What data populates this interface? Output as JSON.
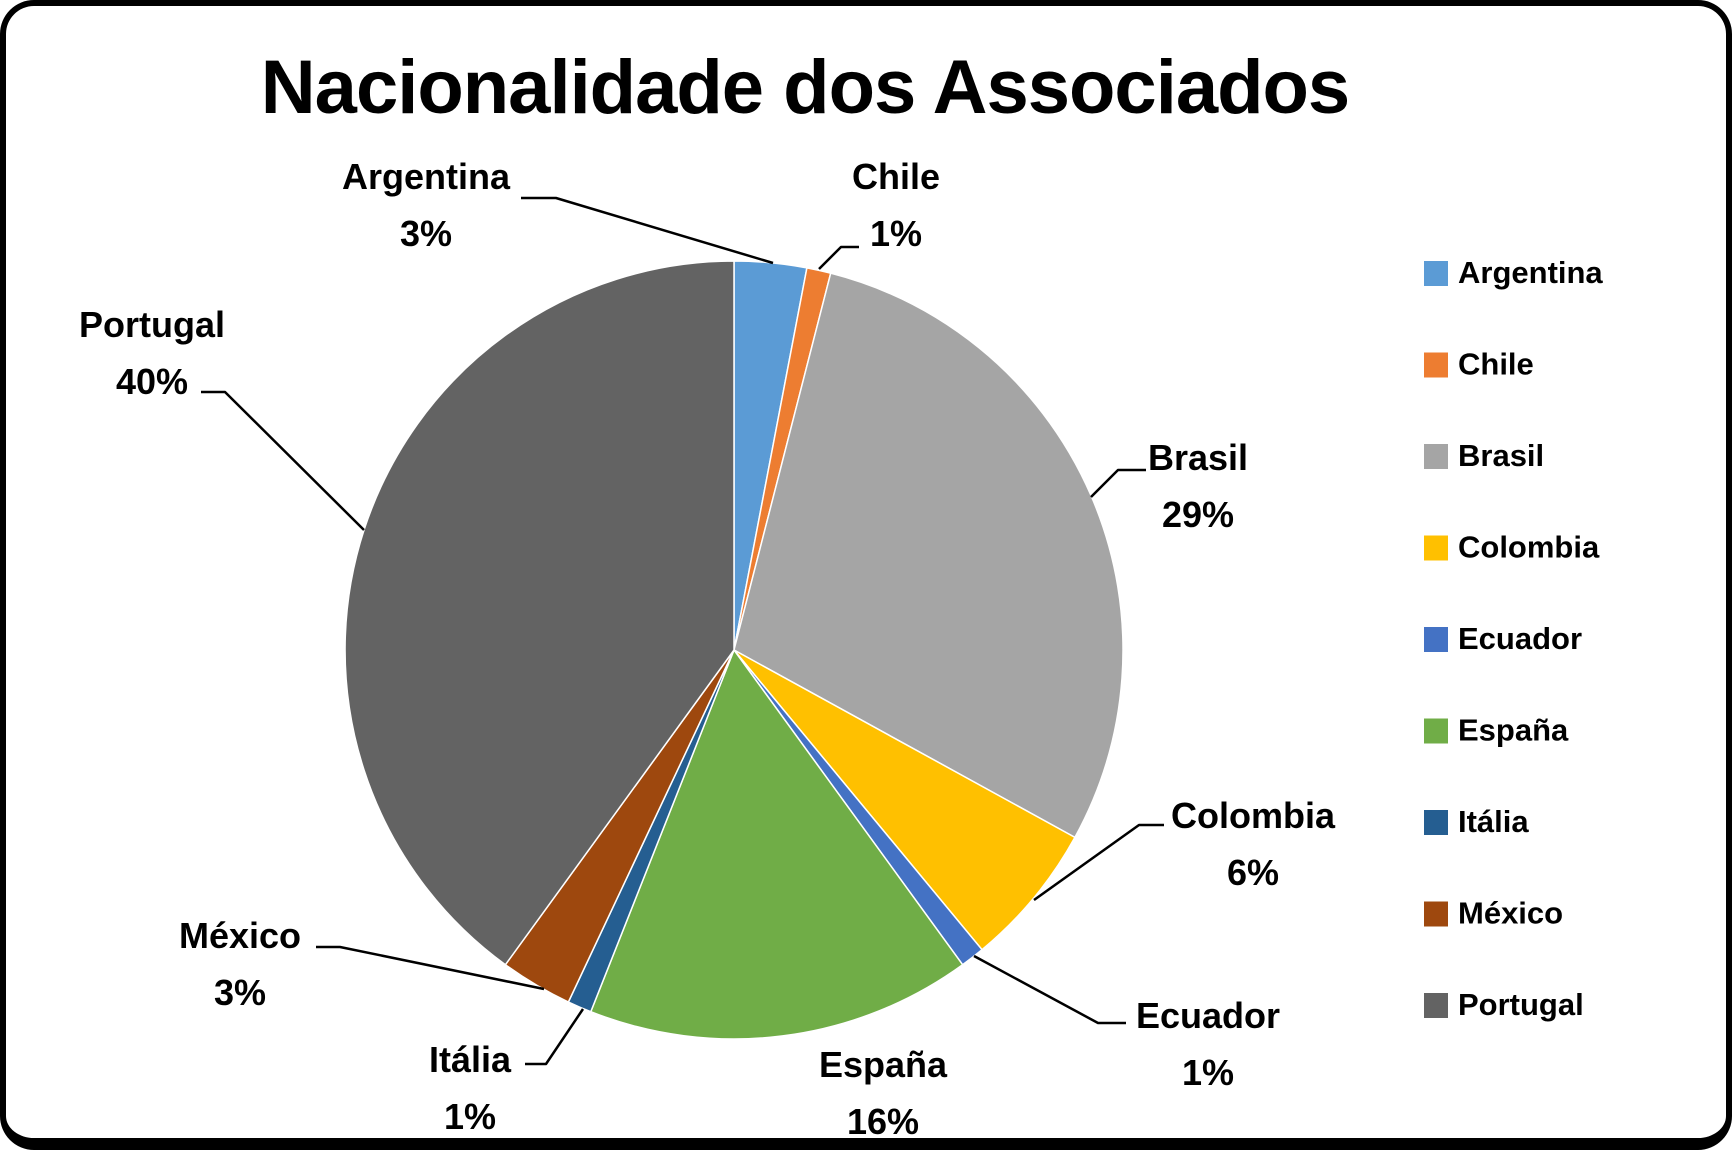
{
  "chart_data": {
    "type": "pie",
    "title": "Nacionalidade dos Associados",
    "legend_position": "right",
    "direction": "clockwise",
    "start_angle_deg": 0,
    "categories": [
      "Argentina",
      "Chile",
      "Brasil",
      "Colombia",
      "Ecuador",
      "España",
      "Itália",
      "México",
      "Portugal"
    ],
    "values": [
      3,
      1,
      29,
      6,
      1,
      16,
      1,
      3,
      40
    ],
    "percent_labels": [
      "3%",
      "1%",
      "29%",
      "6%",
      "1%",
      "16%",
      "1%",
      "3%",
      "40%"
    ],
    "colors": [
      "#5B9BD5",
      "#ED7D31",
      "#A5A5A5",
      "#FFC000",
      "#4472C4",
      "#70AD47",
      "#255E91",
      "#9E480E",
      "#636363"
    ],
    "slice_border_color": "#FFFFFF",
    "label_color": "#000000",
    "leader_line_color": "#000000"
  },
  "frame": {
    "background": "#FFFFFF",
    "border_color": "#000000"
  }
}
